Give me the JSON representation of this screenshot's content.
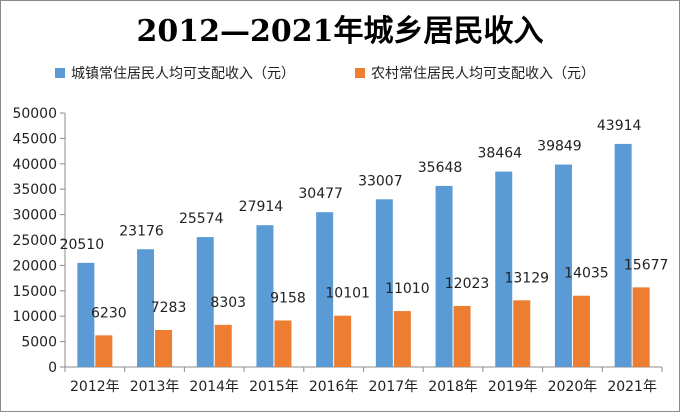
{
  "chart_data": {
    "type": "bar",
    "title": "2012—2021年城乡居民收入",
    "categories": [
      "2012年",
      "2013年",
      "2014年",
      "2015年",
      "2016年",
      "2017年",
      "2018年",
      "2019年",
      "2020年",
      "2021年"
    ],
    "series": [
      {
        "name": "城镇常住居民人均可支配收入（元）",
        "color": "#5b9bd5",
        "values": [
          20510,
          23176,
          25574,
          27914,
          30477,
          33007,
          35648,
          38464,
          39849,
          43914
        ]
      },
      {
        "name": "农村常住居民人均可支配收入（元）",
        "color": "#ed7d31",
        "values": [
          6230,
          7283,
          8303,
          9158,
          10101,
          11010,
          12023,
          13129,
          14035,
          15677
        ]
      }
    ],
    "ylim": [
      0,
      50000
    ],
    "yticks": [
      0,
      5000,
      10000,
      15000,
      20000,
      25000,
      30000,
      35000,
      40000,
      45000,
      50000
    ],
    "xlabel": "",
    "ylabel": "",
    "legend_position": "top",
    "grid": false,
    "data_labels": true
  }
}
